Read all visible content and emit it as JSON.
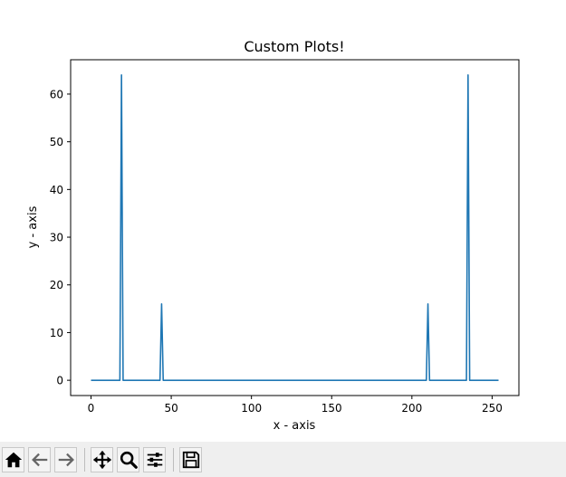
{
  "chart_data": {
    "type": "line",
    "title": "Custom Plots!",
    "xlabel": "x - axis",
    "ylabel": "y - axis",
    "xlim": [
      -12.7,
      266.7
    ],
    "ylim": [
      -3.2,
      67.2
    ],
    "xticks": [
      0,
      50,
      100,
      150,
      200,
      250
    ],
    "yticks": [
      0,
      10,
      20,
      30,
      40,
      50,
      60
    ],
    "grid": false,
    "series": [
      {
        "color": "#1f77b4",
        "x": [
          0,
          17,
          18,
          19,
          20,
          42,
          43,
          44,
          45,
          208,
          209,
          210,
          211,
          233,
          234,
          235,
          236,
          237,
          254
        ],
        "y": [
          0,
          0,
          0,
          64,
          0,
          0,
          0,
          16,
          0,
          0,
          0,
          16,
          0,
          0,
          0,
          64,
          0,
          0,
          0
        ]
      }
    ]
  },
  "toolbar": {
    "buttons": [
      {
        "name": "home-button",
        "icon": "home-icon"
      },
      {
        "name": "back-button",
        "icon": "arrow-left-icon"
      },
      {
        "name": "forward-button",
        "icon": "arrow-right-icon"
      },
      {
        "name": "pan-button",
        "icon": "move-icon"
      },
      {
        "name": "zoom-button",
        "icon": "magnifier-icon"
      },
      {
        "name": "configure-subplots-button",
        "icon": "sliders-icon"
      },
      {
        "name": "save-button",
        "icon": "floppy-disk-icon"
      }
    ]
  }
}
